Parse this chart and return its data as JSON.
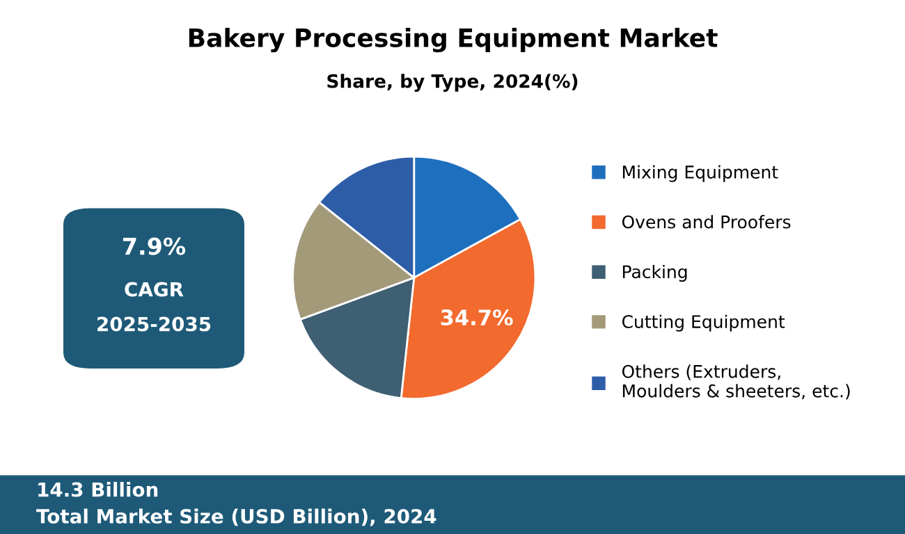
{
  "chart_data": {
    "type": "pie",
    "title": "Bakery Processing Equipment Market",
    "subtitle": "Share, by Type, 2024(%)",
    "categories": [
      "Mixing Equipment",
      "Ovens and Proofers",
      "Packing",
      "Cutting Equipment",
      "Others (Extruders,\nMoulders & sheeters, etc.)"
    ],
    "values": [
      17.0,
      34.7,
      17.7,
      16.3,
      14.3
    ],
    "colors": [
      "#1f6fbf",
      "#f26a2e",
      "#3f5f73",
      "#a39a7a",
      "#2e5da8"
    ],
    "value_labels": [
      null,
      "34.7%",
      null,
      null,
      null
    ],
    "legend": "right",
    "annotations": [
      "7.9%",
      "CAGR",
      "2025-2035",
      "14.3 Billion",
      "Total Market Size (USD Billion), 2024"
    ]
  }
}
